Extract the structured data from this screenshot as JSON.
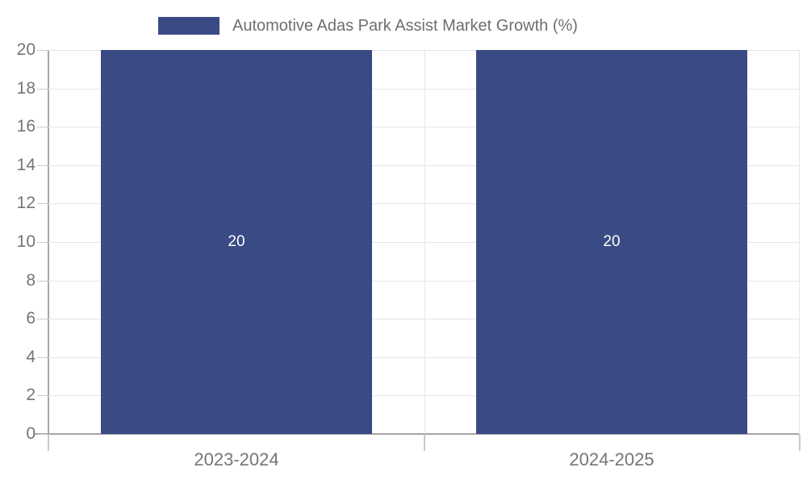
{
  "legend": {
    "label": "Automotive Adas Park Assist Market Growth (%)"
  },
  "chart_data": {
    "type": "bar",
    "title": "Automotive Adas Park Assist Market Growth (%)",
    "categories": [
      "2023-2024",
      "2024-2025"
    ],
    "values": [
      20,
      20
    ],
    "value_labels": [
      "20",
      "20"
    ],
    "xlabel": "",
    "ylabel": "",
    "ylim": [
      0,
      20
    ],
    "yticks": [
      0,
      2,
      4,
      6,
      8,
      10,
      12,
      14,
      16,
      18,
      20
    ],
    "grid": "on",
    "legend_position": "top-center",
    "colors": {
      "bar": "#3a4a85",
      "axis": "#a6a6a6",
      "gridline": "#e5e5e5",
      "tick": "#c9c9c9",
      "axis_label_text": "#757575",
      "title_text": "#6e6e6e",
      "bar_label_text": "#ffffff",
      "background": "#ffffff"
    }
  }
}
